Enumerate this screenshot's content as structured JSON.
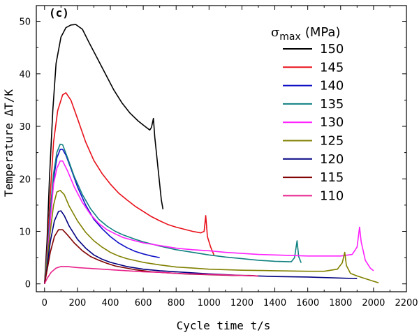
{
  "chart_data": {
    "type": "line",
    "panel_label": "(c)",
    "xlabel": "Cycle time t/s",
    "ylabel": "Temperature ΔT/K",
    "xlim": [
      -50,
      2200
    ],
    "ylim": [
      -1.5,
      53
    ],
    "xticks": [
      0,
      200,
      400,
      600,
      800,
      1000,
      1200,
      1400,
      1600,
      1800,
      2000,
      2200
    ],
    "yticks": [
      0,
      10,
      20,
      30,
      40,
      50
    ],
    "legend": {
      "title_symbol": "σ",
      "title_sub": "max",
      "title_unit": "(MPa)",
      "position": "top-right"
    },
    "series": [
      {
        "name": "150",
        "color": "#000000",
        "points": [
          [
            0,
            0
          ],
          [
            15,
            8
          ],
          [
            30,
            20
          ],
          [
            50,
            33
          ],
          [
            70,
            42
          ],
          [
            100,
            47
          ],
          [
            130,
            48.8
          ],
          [
            160,
            49.3
          ],
          [
            190,
            49.4
          ],
          [
            230,
            48.5
          ],
          [
            270,
            46
          ],
          [
            320,
            43
          ],
          [
            370,
            40
          ],
          [
            420,
            37
          ],
          [
            470,
            34.5
          ],
          [
            520,
            32.5
          ],
          [
            570,
            31
          ],
          [
            610,
            30
          ],
          [
            640,
            29.3
          ],
          [
            650,
            29.8
          ],
          [
            662,
            31.5
          ],
          [
            670,
            28
          ],
          [
            690,
            22
          ],
          [
            710,
            16
          ],
          [
            720,
            14.2
          ]
        ]
      },
      {
        "name": "145",
        "color": "#e8101a",
        "points": [
          [
            0,
            0
          ],
          [
            15,
            6
          ],
          [
            35,
            17
          ],
          [
            55,
            27
          ],
          [
            80,
            33
          ],
          [
            110,
            36
          ],
          [
            130,
            36.4
          ],
          [
            160,
            35
          ],
          [
            200,
            31.5
          ],
          [
            250,
            27
          ],
          [
            300,
            23.5
          ],
          [
            350,
            21
          ],
          [
            400,
            19
          ],
          [
            450,
            17.3
          ],
          [
            500,
            16
          ],
          [
            550,
            14.8
          ],
          [
            600,
            13.8
          ],
          [
            650,
            12.8
          ],
          [
            700,
            12
          ],
          [
            750,
            11.3
          ],
          [
            800,
            10.8
          ],
          [
            850,
            10.4
          ],
          [
            900,
            10
          ],
          [
            950,
            9.7
          ],
          [
            970,
            10
          ],
          [
            980,
            13
          ],
          [
            990,
            9
          ],
          [
            1010,
            7
          ],
          [
            1030,
            5.5
          ]
        ]
      },
      {
        "name": "140",
        "color": "#1010c8",
        "points": [
          [
            0,
            0
          ],
          [
            15,
            5
          ],
          [
            35,
            14
          ],
          [
            55,
            20
          ],
          [
            75,
            24
          ],
          [
            95,
            25.6
          ],
          [
            110,
            25.6
          ],
          [
            130,
            24.5
          ],
          [
            160,
            22
          ],
          [
            200,
            18.5
          ],
          [
            250,
            15
          ],
          [
            300,
            12.3
          ],
          [
            350,
            10.5
          ],
          [
            400,
            9
          ],
          [
            450,
            7.8
          ],
          [
            500,
            6.9
          ],
          [
            550,
            6.2
          ],
          [
            600,
            5.7
          ],
          [
            650,
            5.3
          ],
          [
            700,
            5
          ]
        ]
      },
      {
        "name": "135",
        "color": "#108080",
        "points": [
          [
            0,
            0
          ],
          [
            15,
            5
          ],
          [
            35,
            14
          ],
          [
            55,
            21
          ],
          [
            75,
            25
          ],
          [
            95,
            26.6
          ],
          [
            110,
            26.5
          ],
          [
            140,
            24
          ],
          [
            180,
            20.5
          ],
          [
            230,
            17
          ],
          [
            280,
            14.3
          ],
          [
            330,
            12.3
          ],
          [
            380,
            11
          ],
          [
            430,
            10
          ],
          [
            480,
            9.3
          ],
          [
            550,
            8.5
          ],
          [
            600,
            8
          ],
          [
            700,
            7.2
          ],
          [
            800,
            6.5
          ],
          [
            900,
            6
          ],
          [
            1000,
            5.5
          ],
          [
            1100,
            5.1
          ],
          [
            1200,
            4.8
          ],
          [
            1300,
            4.5
          ],
          [
            1400,
            4.3
          ],
          [
            1500,
            4.2
          ],
          [
            1520,
            5
          ],
          [
            1535,
            8.2
          ],
          [
            1545,
            5.2
          ],
          [
            1560,
            4
          ]
        ]
      },
      {
        "name": "130",
        "color": "#ff20ff",
        "points": [
          [
            0,
            0
          ],
          [
            15,
            4
          ],
          [
            35,
            12
          ],
          [
            55,
            19
          ],
          [
            75,
            22
          ],
          [
            95,
            23.4
          ],
          [
            110,
            23.4
          ],
          [
            140,
            21.5
          ],
          [
            180,
            18.5
          ],
          [
            230,
            15.5
          ],
          [
            280,
            13.2
          ],
          [
            330,
            11.5
          ],
          [
            380,
            10.3
          ],
          [
            430,
            9.5
          ],
          [
            480,
            8.8
          ],
          [
            550,
            8.2
          ],
          [
            600,
            7.8
          ],
          [
            700,
            7.3
          ],
          [
            800,
            6.8
          ],
          [
            900,
            6.5
          ],
          [
            1000,
            6.3
          ],
          [
            1100,
            6
          ],
          [
            1200,
            5.8
          ],
          [
            1300,
            5.6
          ],
          [
            1400,
            5.5
          ],
          [
            1500,
            5.4
          ],
          [
            1600,
            5.3
          ],
          [
            1700,
            5.3
          ],
          [
            1800,
            5.3
          ],
          [
            1870,
            5.6
          ],
          [
            1900,
            7
          ],
          [
            1915,
            10.8
          ],
          [
            1925,
            8
          ],
          [
            1950,
            4.5
          ],
          [
            1980,
            3
          ],
          [
            2000,
            2.5
          ]
        ]
      },
      {
        "name": "125",
        "color": "#808000",
        "points": [
          [
            0,
            0
          ],
          [
            15,
            4
          ],
          [
            35,
            10
          ],
          [
            55,
            15
          ],
          [
            75,
            17.5
          ],
          [
            95,
            17.8
          ],
          [
            120,
            17
          ],
          [
            150,
            14.8
          ],
          [
            200,
            12
          ],
          [
            250,
            9.8
          ],
          [
            300,
            8.2
          ],
          [
            350,
            7
          ],
          [
            400,
            6
          ],
          [
            450,
            5.3
          ],
          [
            500,
            4.8
          ],
          [
            600,
            4.1
          ],
          [
            700,
            3.6
          ],
          [
            800,
            3.2
          ],
          [
            900,
            3
          ],
          [
            1000,
            2.8
          ],
          [
            1200,
            2.6
          ],
          [
            1400,
            2.5
          ],
          [
            1600,
            2.4
          ],
          [
            1700,
            2.4
          ],
          [
            1780,
            2.8
          ],
          [
            1810,
            4
          ],
          [
            1825,
            6
          ],
          [
            1835,
            3.5
          ],
          [
            1860,
            2
          ],
          [
            1900,
            1.5
          ],
          [
            1950,
            1
          ],
          [
            2000,
            0.5
          ],
          [
            2030,
            0.2
          ]
        ]
      },
      {
        "name": "120",
        "color": "#000080",
        "points": [
          [
            0,
            0
          ],
          [
            15,
            3
          ],
          [
            35,
            8
          ],
          [
            60,
            12
          ],
          [
            85,
            13.8
          ],
          [
            100,
            13.9
          ],
          [
            120,
            13
          ],
          [
            150,
            11
          ],
          [
            200,
            8.5
          ],
          [
            250,
            6.8
          ],
          [
            300,
            5.5
          ],
          [
            350,
            4.7
          ],
          [
            400,
            4.1
          ],
          [
            450,
            3.7
          ],
          [
            500,
            3.3
          ],
          [
            600,
            2.8
          ],
          [
            700,
            2.5
          ],
          [
            800,
            2.3
          ],
          [
            900,
            2.1
          ],
          [
            1000,
            1.9
          ],
          [
            1200,
            1.6
          ],
          [
            1400,
            1.4
          ],
          [
            1600,
            1.3
          ],
          [
            1800,
            1.1
          ],
          [
            1900,
            1
          ]
        ]
      },
      {
        "name": "115",
        "color": "#800000",
        "points": [
          [
            0,
            0
          ],
          [
            15,
            2.5
          ],
          [
            35,
            6
          ],
          [
            60,
            9
          ],
          [
            85,
            10.3
          ],
          [
            110,
            10.3
          ],
          [
            140,
            9.3
          ],
          [
            180,
            7.8
          ],
          [
            230,
            6.3
          ],
          [
            280,
            5.2
          ],
          [
            330,
            4.5
          ],
          [
            380,
            3.9
          ],
          [
            430,
            3.4
          ],
          [
            480,
            3.1
          ],
          [
            550,
            2.7
          ],
          [
            650,
            2.3
          ],
          [
            750,
            2.1
          ],
          [
            850,
            1.9
          ],
          [
            950,
            1.8
          ],
          [
            1050,
            1.7
          ],
          [
            1150,
            1.6
          ],
          [
            1250,
            1.6
          ],
          [
            1300,
            1.5
          ]
        ]
      },
      {
        "name": "110",
        "color": "#e8208a",
        "points": [
          [
            0,
            0
          ],
          [
            15,
            1
          ],
          [
            40,
            2.2
          ],
          [
            70,
            3
          ],
          [
            100,
            3.3
          ],
          [
            140,
            3.3
          ],
          [
            200,
            3.1
          ],
          [
            300,
            2.9
          ],
          [
            400,
            2.7
          ],
          [
            500,
            2.5
          ],
          [
            600,
            2.3
          ],
          [
            700,
            2.2
          ],
          [
            800,
            2
          ],
          [
            900,
            1.9
          ],
          [
            1000,
            1.8
          ],
          [
            1100,
            1.7
          ],
          [
            1200,
            1.6
          ],
          [
            1300,
            1.5
          ]
        ]
      }
    ]
  }
}
